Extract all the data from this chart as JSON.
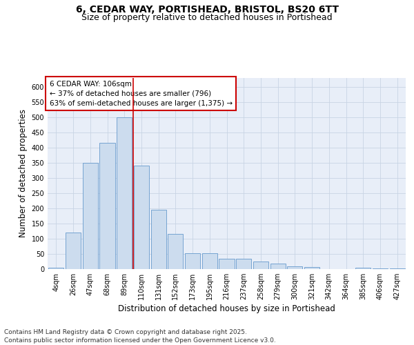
{
  "title_line1": "6, CEDAR WAY, PORTISHEAD, BRISTOL, BS20 6TT",
  "title_line2": "Size of property relative to detached houses in Portishead",
  "xlabel": "Distribution of detached houses by size in Portishead",
  "ylabel": "Number of detached properties",
  "categories": [
    "4sqm",
    "26sqm",
    "47sqm",
    "68sqm",
    "89sqm",
    "110sqm",
    "131sqm",
    "152sqm",
    "173sqm",
    "195sqm",
    "216sqm",
    "237sqm",
    "258sqm",
    "279sqm",
    "300sqm",
    "321sqm",
    "342sqm",
    "364sqm",
    "385sqm",
    "406sqm",
    "427sqm"
  ],
  "values": [
    4,
    120,
    350,
    415,
    500,
    340,
    196,
    115,
    52,
    52,
    35,
    35,
    25,
    18,
    10,
    7,
    1,
    1,
    4,
    2,
    3
  ],
  "bar_color": "#ccdcee",
  "bar_edge_color": "#6699cc",
  "grid_color": "#c8d4e4",
  "bg_color": "#e8eef8",
  "annotation_text": "6 CEDAR WAY: 106sqm\n← 37% of detached houses are smaller (796)\n63% of semi-detached houses are larger (1,375) →",
  "annotation_box_color": "#ffffff",
  "annotation_box_edge": "#cc0000",
  "vline_color": "#cc0000",
  "vline_x": 4.5,
  "ylim": [
    0,
    630
  ],
  "yticks": [
    0,
    50,
    100,
    150,
    200,
    250,
    300,
    350,
    400,
    450,
    500,
    550,
    600
  ],
  "footnote": "Contains HM Land Registry data © Crown copyright and database right 2025.\nContains public sector information licensed under the Open Government Licence v3.0.",
  "title_fontsize": 10,
  "subtitle_fontsize": 9,
  "axis_label_fontsize": 8.5,
  "tick_fontsize": 7,
  "annotation_fontsize": 7.5,
  "footnote_fontsize": 6.5
}
